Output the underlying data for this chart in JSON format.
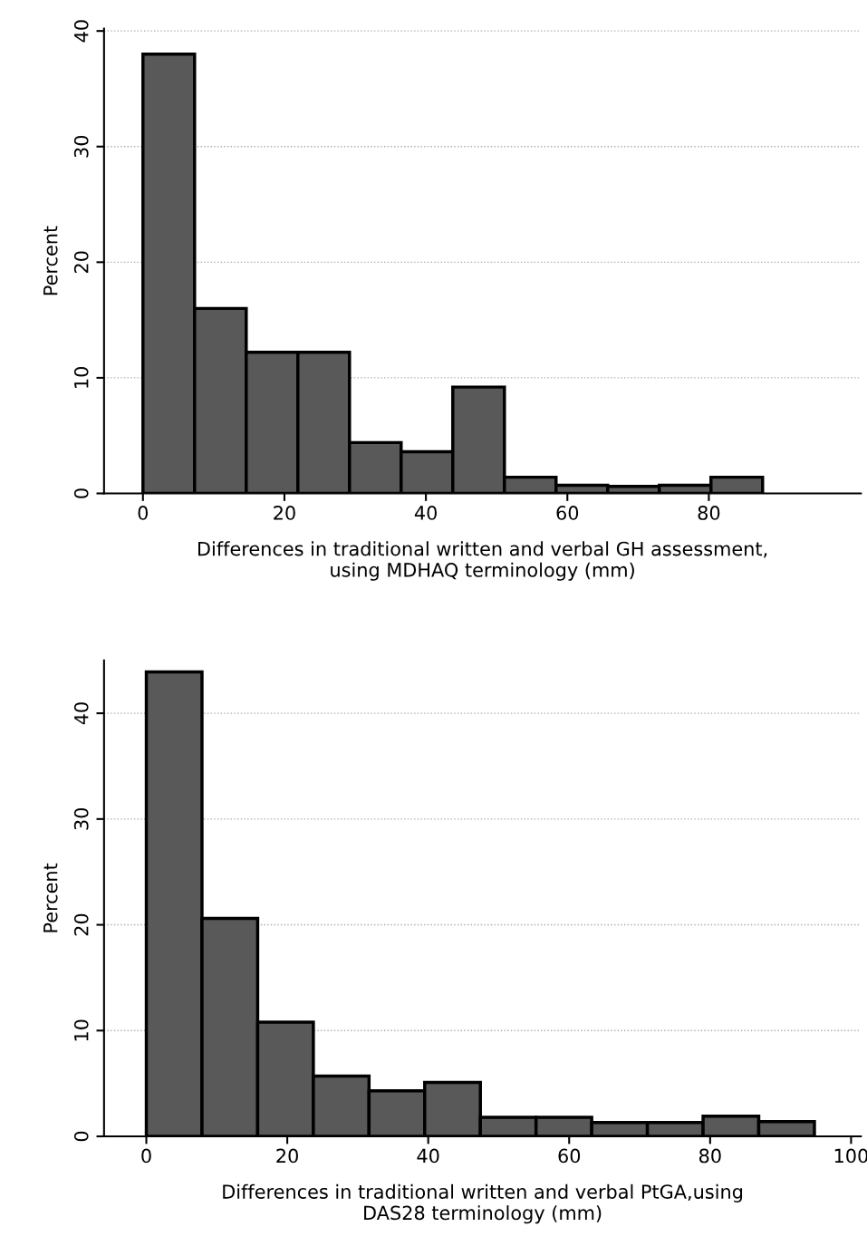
{
  "chart_data": [
    {
      "type": "histogram",
      "xlabel": "Differences in traditional written and verbal GH assessment,\nusing MDHAQ terminology (mm)",
      "ylabel": "Percent",
      "bins": [
        0,
        7.3,
        14.6,
        21.9,
        29.2,
        36.5,
        43.8,
        51.1,
        58.4,
        65.7,
        73,
        80.3,
        87.6
      ],
      "values": [
        38.0,
        16.0,
        12.2,
        12.2,
        4.4,
        3.6,
        9.2,
        1.4,
        0.7,
        0.6,
        0.7,
        1.4
      ],
      "color": "#595959",
      "xlim": [
        -5.5,
        101.5
      ],
      "xticks": [
        0,
        20,
        40,
        60,
        80
      ],
      "ylim": [
        0,
        40.2
      ],
      "yticks": [
        0,
        10,
        20,
        30,
        40
      ],
      "grid": "y"
    },
    {
      "type": "histogram",
      "xlabel": "Differences in traditional written and verbal PtGA,using\nDAS28 terminology (mm)",
      "ylabel": "Percent",
      "bins": [
        0,
        7.9,
        15.8,
        23.7,
        31.6,
        39.5,
        47.4,
        55.3,
        63.2,
        71.1,
        79,
        86.9,
        94.8
      ],
      "values": [
        43.9,
        20.6,
        10.8,
        5.7,
        4.3,
        5.1,
        1.8,
        1.8,
        1.3,
        1.3,
        1.9,
        1.4
      ],
      "color": "#595959",
      "xlim": [
        -6,
        101.4
      ],
      "xticks": [
        0,
        20,
        40,
        60,
        80,
        100
      ],
      "ylim": [
        0,
        45
      ],
      "yticks": [
        0,
        10,
        20,
        30,
        40
      ],
      "grid": "y"
    }
  ]
}
